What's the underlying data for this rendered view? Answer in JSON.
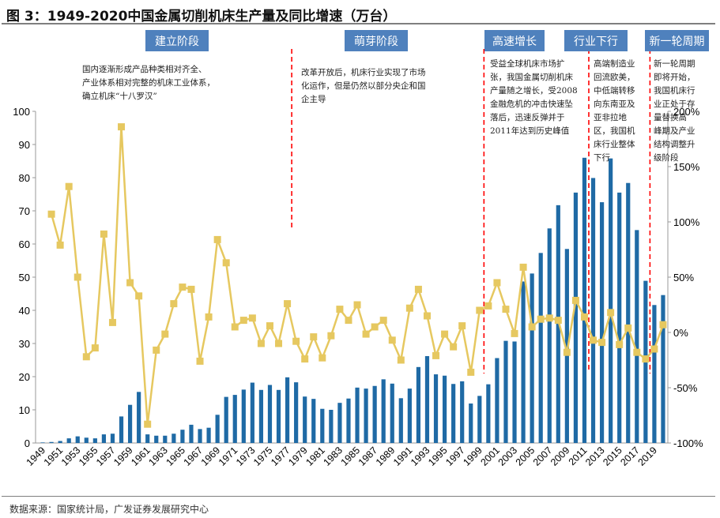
{
  "title": "图 3：1949-2020中国金属切削机床生产量及同比增速（万台）",
  "source": "数据来源：国家统计局，广发证券发展研究中心",
  "stages": [
    {
      "label": "建立阶段",
      "note": "国内逐渐形成产品种类相对齐全、\n产业体系相对完整的机床工业体系，\n确立机床“十八罗汉”"
    },
    {
      "label": "萌芽阶段",
      "note": "改革开放后，机床行业实现了市场\n化运作，但是仍然以部分央企和国\n企主导"
    },
    {
      "label": "高速增长",
      "note": "受益全球机床市场扩\n张，我国金属切削机床\n产量随之增长，受2008\n金融危机的冲击快速坠\n落后，迅速反弹并于\n2011年达到历史峰值"
    },
    {
      "label": "行业下行",
      "note": "高端制造业\n回流欧美，\n中低端转移\n向东南亚及\n亚非拉地\n区，我国机\n床行业整体\n下行"
    },
    {
      "label": "新一轮周期",
      "note": "新一轮周期\n即将开始，\n我国机床行\n业正处于存\n量替换高\n峰期及产业\n结构调整升\n级阶段"
    }
  ],
  "chart_data": {
    "type": "bar+line",
    "colors": {
      "bars": "#1f6aa5",
      "line": "#e6c860",
      "dividers": "#ff0000",
      "stage_box": "#4f81bd"
    },
    "x": [
      1949,
      1950,
      1951,
      1952,
      1953,
      1954,
      1955,
      1956,
      1957,
      1958,
      1959,
      1960,
      1961,
      1962,
      1963,
      1964,
      1965,
      1966,
      1967,
      1968,
      1969,
      1970,
      1971,
      1972,
      1973,
      1974,
      1975,
      1976,
      1977,
      1978,
      1979,
      1980,
      1981,
      1982,
      1983,
      1984,
      1985,
      1986,
      1987,
      1988,
      1989,
      1990,
      1991,
      1992,
      1993,
      1994,
      1995,
      1996,
      1997,
      1998,
      1999,
      2000,
      2001,
      2002,
      2003,
      2004,
      2005,
      2006,
      2007,
      2008,
      2009,
      2010,
      2011,
      2012,
      2013,
      2014,
      2015,
      2016,
      2017,
      2018,
      2019,
      2020
    ],
    "x_tick_labels": [
      "1949",
      "1951",
      "1953",
      "1955",
      "1957",
      "1959",
      "1961",
      "1963",
      "1965",
      "1967",
      "1969",
      "1971",
      "1973",
      "1975",
      "1977",
      "1979",
      "1981",
      "1983",
      "1985",
      "1987",
      "1989",
      "1991",
      "1993",
      "1995",
      "1997",
      "1999",
      "2001",
      "2003",
      "2005",
      "2007",
      "2009",
      "2011",
      "2013",
      "2015",
      "2017",
      "2019"
    ],
    "series": [
      {
        "axis": "left",
        "type": "bar",
        "values": [
          0.16,
          0.3,
          0.6,
          1.4,
          2.0,
          1.6,
          1.4,
          2.6,
          2.8,
          8.0,
          11.5,
          15.4,
          2.6,
          2.2,
          2.2,
          2.8,
          4.0,
          5.5,
          4.2,
          4.6,
          8.5,
          13.9,
          14.5,
          16.1,
          18.2,
          16.0,
          17.5,
          16.0,
          19.8,
          18.3,
          14.0,
          13.3,
          10.3,
          10.0,
          12.1,
          13.4,
          16.7,
          16.4,
          17.2,
          19.2,
          17.9,
          13.5,
          16.4,
          22.9,
          26.2,
          20.7,
          20.3,
          17.8,
          18.6,
          11.9,
          14.2,
          17.7,
          25.6,
          30.8,
          30.6,
          48.7,
          51.1,
          57.3,
          64.7,
          71.7,
          58.5,
          75.5,
          86.0,
          79.9,
          72.6,
          85.8,
          75.5,
          78.4,
          64.2,
          48.9,
          41.6,
          44.6
        ]
      },
      {
        "axis": "right",
        "type": "line",
        "values": [
          null,
          107,
          79,
          132,
          50,
          -22,
          -14,
          89,
          9,
          186,
          45,
          33,
          -83,
          -16,
          -1.5,
          26,
          41,
          39,
          -26,
          14,
          84,
          63,
          5,
          11,
          13,
          -10,
          6,
          -10,
          26,
          -8,
          -24,
          -4,
          -23,
          -3,
          21,
          11,
          25,
          -1.5,
          5,
          11,
          -7,
          -25,
          22,
          39,
          15,
          -21,
          -1.5,
          -13,
          6,
          -36,
          20,
          24,
          45,
          21,
          -1,
          59,
          5,
          12,
          13,
          11,
          -18,
          29,
          14,
          -7,
          -9,
          18,
          -11,
          4,
          -18,
          -24,
          -15,
          7
        ]
      }
    ],
    "y_left": {
      "range": [
        0,
        100
      ],
      "ticks": [
        "0",
        "10",
        "20",
        "30",
        "40",
        "50",
        "60",
        "70",
        "80",
        "90",
        "100"
      ]
    },
    "y_right": {
      "range": [
        -100,
        200
      ],
      "ticks": [
        "-100%",
        "-50%",
        "0%",
        "50%",
        "100%",
        "150%",
        "200%"
      ]
    },
    "dividers_after_year": [
      1977.5,
      1999.5,
      2011.5,
      2018.5
    ],
    "grid": false
  }
}
